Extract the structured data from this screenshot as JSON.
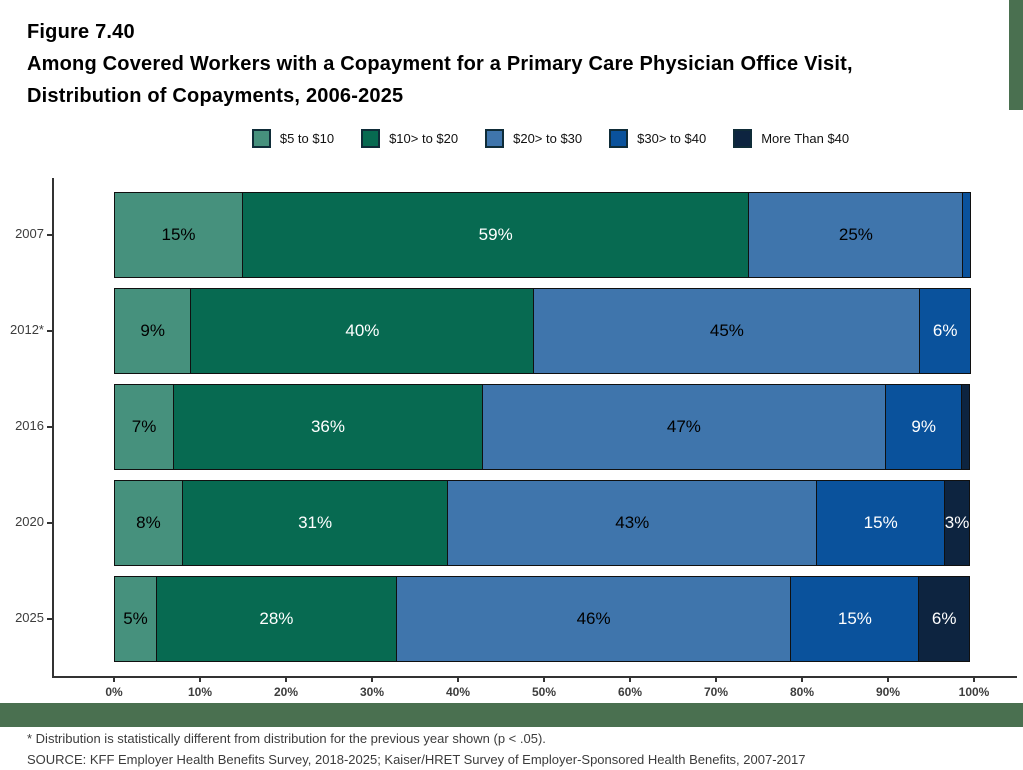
{
  "title": {
    "line1": "Figure 7.40",
    "line2": "Among Covered Workers with a Copayment for a Primary Care Physician Office Visit,",
    "line3": "Distribution of Copayments, 2006-2025"
  },
  "colors": {
    "accent_band": "#4a7050",
    "axis": "#333333",
    "tick_label": "#3d3d3d",
    "bar_outline": "#101010"
  },
  "chart_data": {
    "type": "bar",
    "orientation": "horizontal-stacked",
    "title": "Among Covered Workers with a Copayment for a Primary Care Physician Office Visit, Distribution of Copayments, 2006-2025",
    "categories": [
      "2007",
      "2012*",
      "2016",
      "2020",
      "2025"
    ],
    "series": [
      {
        "name": "$5 to $10",
        "color": "#46917d",
        "label_color": "#000000",
        "values": [
          15,
          9,
          7,
          8,
          5
        ]
      },
      {
        "name": "$10> to $20",
        "color": "#076a51",
        "label_color": "#ffffff",
        "values": [
          59,
          40,
          36,
          31,
          28
        ]
      },
      {
        "name": "$20> to $30",
        "color": "#3f75ac",
        "label_color": "#000000",
        "values": [
          25,
          45,
          47,
          43,
          46
        ]
      },
      {
        "name": "$30> to $40",
        "color": "#0a529c",
        "label_color": "#ffffff",
        "values": [
          1,
          6,
          9,
          15,
          15
        ]
      },
      {
        "name": "More Than $40",
        "color": "#0d2440",
        "label_color": "#ffffff",
        "values": [
          0,
          0,
          1,
          3,
          6
        ]
      }
    ],
    "value_suffix": "%",
    "label_min_value": 3,
    "xlabel_ticks": [
      "0%",
      "10%",
      "20%",
      "30%",
      "40%",
      "50%",
      "60%",
      "70%",
      "80%",
      "90%",
      "100%"
    ],
    "xlim": [
      0,
      100
    ],
    "grid": false,
    "legend_position": "top"
  },
  "footnotes": {
    "note": "* Distribution is statistically different from distribution for the previous year shown (p < .05).",
    "source": "SOURCE: KFF Employer Health Benefits Survey, 2018-2025; Kaiser/HRET Survey of Employer-Sponsored Health Benefits, 2007-2017"
  }
}
